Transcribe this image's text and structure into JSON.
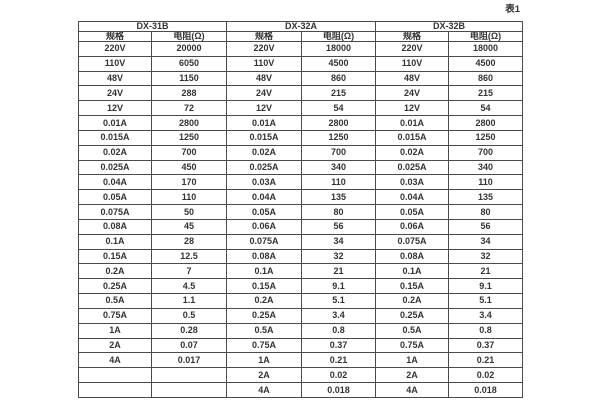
{
  "caption": "表1",
  "table": {
    "groups": [
      {
        "name": "DX-31B",
        "spec_header": "规格",
        "res_header": "电阻(Ω)"
      },
      {
        "name": "DX-32A",
        "spec_header": "规格",
        "res_header": "电阻(Ω)"
      },
      {
        "name": "DX-32B",
        "spec_header": "规格",
        "res_header": "电阻(Ω)"
      }
    ],
    "rows": [
      [
        "220V",
        "20000",
        "220V",
        "18000",
        "220V",
        "18000"
      ],
      [
        "110V",
        "6050",
        "110V",
        "4500",
        "110V",
        "4500"
      ],
      [
        "48V",
        "1150",
        "48V",
        "860",
        "48V",
        "860"
      ],
      [
        "24V",
        "288",
        "24V",
        "215",
        "24V",
        "215"
      ],
      [
        "12V",
        "72",
        "12V",
        "54",
        "12V",
        "54"
      ],
      [
        "0.01A",
        "2800",
        "0.01A",
        "2800",
        "0.01A",
        "2800"
      ],
      [
        "0.015A",
        "1250",
        "0.015A",
        "1250",
        "0.015A",
        "1250"
      ],
      [
        "0.02A",
        "700",
        "0.02A",
        "700",
        "0.02A",
        "700"
      ],
      [
        "0.025A",
        "450",
        "0.025A",
        "340",
        "0.025A",
        "340"
      ],
      [
        "0.04A",
        "170",
        "0.03A",
        "110",
        "0.03A",
        "110"
      ],
      [
        "0.05A",
        "110",
        "0.04A",
        "135",
        "0.04A",
        "135"
      ],
      [
        "0.075A",
        "50",
        "0.05A",
        "80",
        "0.05A",
        "80"
      ],
      [
        "0.08A",
        "45",
        "0.06A",
        "56",
        "0.06A",
        "56"
      ],
      [
        "0.1A",
        "28",
        "0.075A",
        "34",
        "0.075A",
        "34"
      ],
      [
        "0.15A",
        "12.5",
        "0.08A",
        "32",
        "0.08A",
        "32"
      ],
      [
        "0.2A",
        "7",
        "0.1A",
        "21",
        "0.1A",
        "21"
      ],
      [
        "0.25A",
        "4.5",
        "0.15A",
        "9.1",
        "0.15A",
        "9.1"
      ],
      [
        "0.5A",
        "1.1",
        "0.2A",
        "5.1",
        "0.2A",
        "5.1"
      ],
      [
        "0.75A",
        "0.5",
        "0.25A",
        "3.4",
        "0.25A",
        "3.4"
      ],
      [
        "1A",
        "0.28",
        "0.5A",
        "0.8",
        "0.5A",
        "0.8"
      ],
      [
        "2A",
        "0.07",
        "0.75A",
        "0.37",
        "0.75A",
        "0.37"
      ],
      [
        "4A",
        "0.017",
        "1A",
        "0.21",
        "1A",
        "0.21"
      ],
      [
        "",
        "",
        "2A",
        "0.02",
        "2A",
        "0.02"
      ],
      [
        "",
        "",
        "4A",
        "0.018",
        "4A",
        "0.018"
      ]
    ]
  },
  "colors": {
    "text": "#333333",
    "border": "#4a4a4a",
    "background": "#ffffff"
  }
}
